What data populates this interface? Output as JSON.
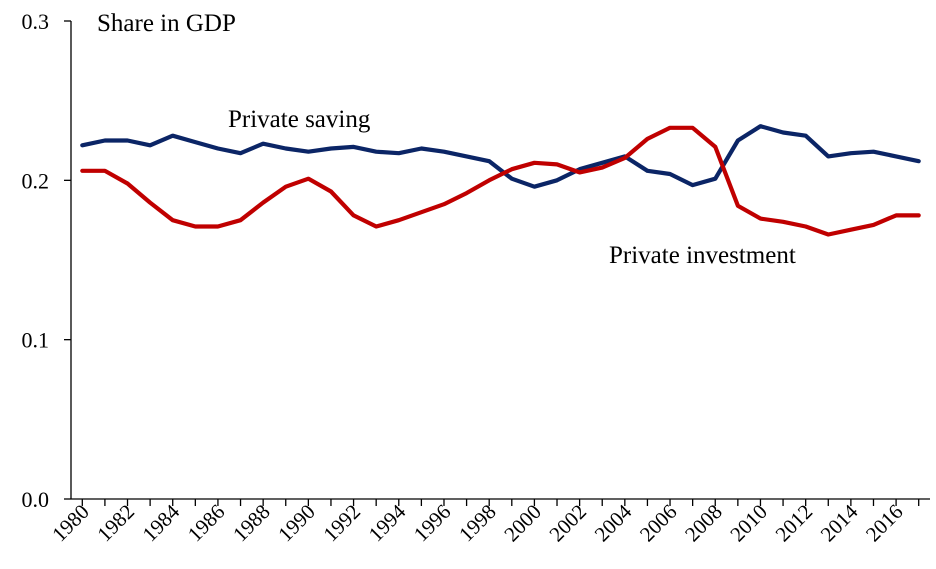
{
  "chart_data": {
    "type": "line",
    "ylabel": "Share in GDP",
    "ylim": [
      0.0,
      0.3
    ],
    "yticks": [
      "0.0",
      "0.1",
      "0.2",
      "0.3"
    ],
    "x": [
      1980,
      1981,
      1982,
      1983,
      1984,
      1985,
      1986,
      1987,
      1988,
      1989,
      1990,
      1991,
      1992,
      1993,
      1994,
      1995,
      1996,
      1997,
      1998,
      1999,
      2000,
      2001,
      2002,
      2003,
      2004,
      2005,
      2006,
      2007,
      2008,
      2009,
      2010,
      2011,
      2012,
      2013,
      2014,
      2015,
      2016,
      2017
    ],
    "xtick_labels": [
      "1980",
      "1982",
      "1984",
      "1986",
      "1988",
      "1990",
      "1992",
      "1994",
      "1996",
      "1998",
      "2000",
      "2002",
      "2004",
      "2006",
      "2008",
      "2010",
      "2012",
      "2014",
      "2016"
    ],
    "series": [
      {
        "name": "Private saving",
        "color": "#0b2566",
        "values": [
          0.222,
          0.225,
          0.225,
          0.222,
          0.228,
          0.224,
          0.22,
          0.217,
          0.223,
          0.22,
          0.218,
          0.22,
          0.221,
          0.218,
          0.217,
          0.22,
          0.218,
          0.215,
          0.212,
          0.201,
          0.196,
          0.2,
          0.207,
          0.211,
          0.215,
          0.206,
          0.204,
          0.197,
          0.201,
          0.225,
          0.234,
          0.23,
          0.228,
          0.215,
          0.217,
          0.218,
          0.215,
          0.212
        ]
      },
      {
        "name": "Private investment",
        "color": "#c00000",
        "values": [
          0.206,
          0.206,
          0.198,
          0.186,
          0.175,
          0.171,
          0.171,
          0.175,
          0.186,
          0.196,
          0.201,
          0.193,
          0.178,
          0.171,
          0.175,
          0.18,
          0.185,
          0.192,
          0.2,
          0.207,
          0.211,
          0.21,
          0.205,
          0.208,
          0.214,
          0.226,
          0.233,
          0.233,
          0.221,
          0.184,
          0.176,
          0.174,
          0.171,
          0.166,
          0.169,
          0.172,
          0.178,
          0.178
        ]
      }
    ],
    "grid": false,
    "legend": "none"
  }
}
